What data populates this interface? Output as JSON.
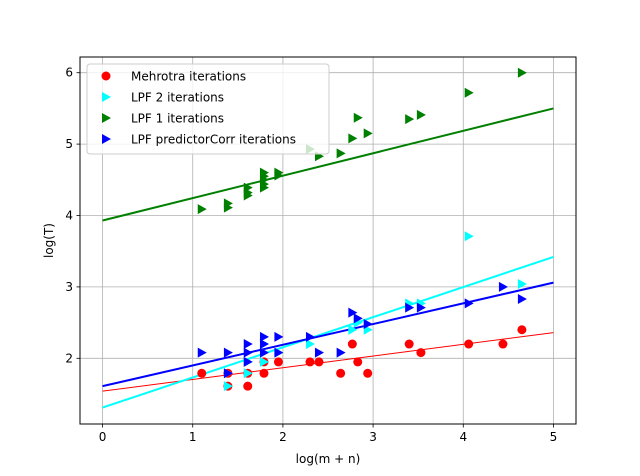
{
  "chart_data": {
    "type": "scatter",
    "title": "",
    "xlabel": "log(m + n)",
    "ylabel": "log(T)",
    "xlim": [
      -0.25,
      5.25
    ],
    "ylim": [
      1.08,
      6.22
    ],
    "xticks": [
      0,
      1,
      2,
      3,
      4,
      5
    ],
    "yticks": [
      2,
      3,
      4,
      5,
      6
    ],
    "grid": true,
    "legend_position": "top-left",
    "series": [
      {
        "name": "Mehrotra iterations",
        "marker": "circle",
        "color": "#ff0000",
        "x": [
          1.1,
          1.39,
          1.39,
          1.61,
          1.61,
          1.79,
          1.79,
          1.95,
          2.3,
          2.4,
          2.64,
          2.77,
          2.83,
          2.94,
          3.4,
          3.53,
          4.06,
          4.44,
          4.65
        ],
        "y": [
          1.79,
          1.61,
          1.79,
          1.61,
          1.79,
          1.79,
          1.95,
          1.95,
          1.95,
          1.95,
          1.79,
          2.2,
          1.95,
          1.79,
          2.2,
          2.08,
          2.2,
          2.2,
          2.4
        ],
        "fit": {
          "x": [
            0,
            5
          ],
          "y": [
            1.54,
            2.36
          ],
          "width": 1
        }
      },
      {
        "name": "LPF 2 iterations",
        "marker": "triangle-right",
        "color": "#00ffff",
        "x": [
          1.39,
          1.39,
          1.61,
          1.61,
          1.79,
          1.79,
          1.79,
          1.95,
          2.3,
          2.77,
          2.83,
          2.94,
          3.4,
          3.53,
          4.06,
          4.65
        ],
        "y": [
          1.61,
          1.79,
          1.79,
          1.95,
          1.95,
          2.08,
          2.2,
          2.08,
          2.2,
          2.4,
          2.5,
          2.4,
          2.77,
          2.77,
          3.71,
          3.04
        ],
        "fit": {
          "x": [
            0,
            5
          ],
          "y": [
            1.31,
            3.42
          ],
          "width": 2
        }
      },
      {
        "name": "LPF 1 iterations",
        "marker": "triangle-right",
        "color": "#008000",
        "x": [
          1.1,
          1.39,
          1.39,
          1.61,
          1.61,
          1.61,
          1.79,
          1.79,
          1.79,
          1.79,
          1.79,
          1.95,
          1.95,
          2.3,
          2.4,
          2.64,
          2.77,
          2.83,
          2.94,
          3.4,
          3.53,
          4.06,
          4.65
        ],
        "y": [
          4.09,
          4.11,
          4.17,
          4.28,
          4.32,
          4.39,
          4.39,
          4.44,
          4.5,
          4.55,
          4.6,
          4.56,
          4.6,
          4.93,
          4.83,
          4.87,
          5.08,
          5.37,
          5.15,
          5.35,
          5.41,
          5.72,
          6.0
        ],
        "fit": {
          "x": [
            0,
            5
          ],
          "y": [
            3.93,
            5.5
          ],
          "width": 2
        }
      },
      {
        "name": "LPF predictorCorr iterations",
        "marker": "triangle-right",
        "color": "#0000ff",
        "x": [
          1.1,
          1.39,
          1.39,
          1.61,
          1.61,
          1.61,
          1.79,
          1.79,
          1.79,
          1.95,
          1.95,
          2.3,
          2.4,
          2.64,
          2.77,
          2.83,
          2.94,
          3.4,
          3.53,
          4.06,
          4.44,
          4.65
        ],
        "y": [
          2.08,
          2.08,
          1.79,
          2.08,
          1.95,
          2.2,
          2.08,
          2.2,
          2.3,
          2.08,
          2.3,
          2.3,
          2.08,
          2.08,
          2.64,
          2.56,
          2.48,
          2.71,
          2.71,
          2.77,
          3.0,
          2.83
        ],
        "fit": {
          "x": [
            0,
            5
          ],
          "y": [
            1.61,
            3.06
          ],
          "width": 2
        }
      }
    ]
  }
}
